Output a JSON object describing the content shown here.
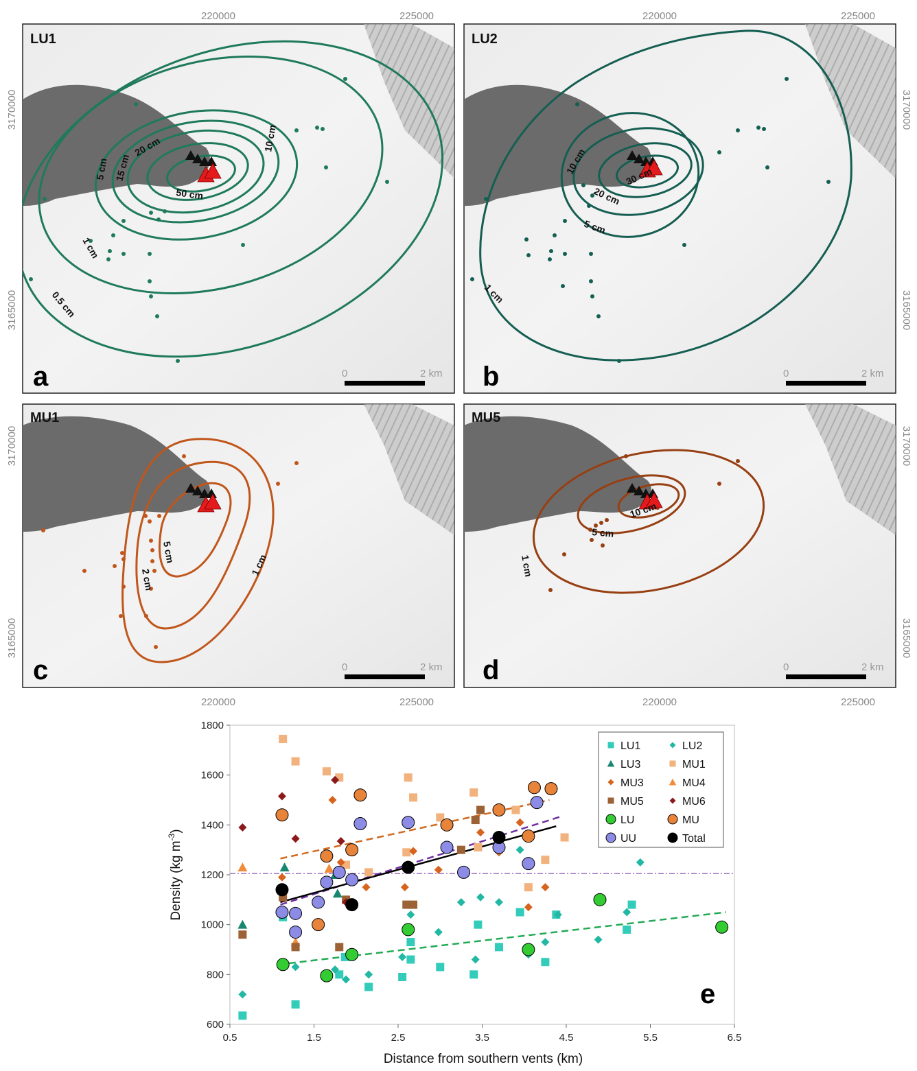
{
  "maps": {
    "x_ticks": [
      "220000",
      "225000"
    ],
    "y_ticks": [
      "3170000",
      "3165000"
    ],
    "scalebar": {
      "zero": "0",
      "end": "2 km"
    },
    "panels": [
      {
        "letter": "a",
        "unit": "LU1",
        "color": "#1f7a5c",
        "isopach_labels": [
          "50 cm",
          "20 cm",
          "15 cm",
          "10 cm",
          "5 cm",
          "1 cm",
          "0.5 cm"
        ]
      },
      {
        "letter": "b",
        "unit": "LU2",
        "color": "#155e52",
        "isopach_labels": [
          "30 cm",
          "20 cm",
          "10 cm",
          "5 cm",
          "1 cm"
        ]
      },
      {
        "letter": "c",
        "unit": "MU1",
        "color": "#c0561b",
        "isopach_labels": [
          "5 cm",
          "2 cm",
          "1 cm"
        ]
      },
      {
        "letter": "d",
        "unit": "MU5",
        "color": "#973f12",
        "isopach_labels": [
          "10 cm",
          "5 cm",
          "1 cm"
        ]
      }
    ]
  },
  "chart_data": {
    "type": "scatter",
    "panel_letter": "e",
    "xlabel": "Distance from southern vents (km)",
    "ylabel": "Density (kg m",
    "ylabel_sup": "-3",
    "ylabel_close": ")",
    "xlim": [
      0.5,
      6.5
    ],
    "ylim": [
      600,
      1800
    ],
    "x_ticks": [
      "0.5",
      "1.5",
      "2.5",
      "3.5",
      "4.5",
      "5.5",
      "6.5"
    ],
    "y_ticks": [
      "600",
      "800",
      "1000",
      "1200",
      "1400",
      "1600",
      "1800"
    ],
    "reference_line_y": 1205,
    "series": [
      {
        "name": "LU1",
        "marker": "square",
        "color": "#33ccbb",
        "points": [
          [
            0.65,
            635
          ],
          [
            1.13,
            1030
          ],
          [
            1.28,
            680
          ],
          [
            1.8,
            800
          ],
          [
            1.87,
            870
          ],
          [
            2.15,
            750
          ],
          [
            2.55,
            790
          ],
          [
            2.65,
            860
          ],
          [
            2.65,
            930
          ],
          [
            3.0,
            830
          ],
          [
            3.4,
            800
          ],
          [
            3.45,
            1000
          ],
          [
            3.7,
            910
          ],
          [
            3.95,
            1050
          ],
          [
            4.25,
            850
          ],
          [
            4.38,
            1040
          ],
          [
            5.22,
            980
          ],
          [
            5.28,
            1080
          ]
        ]
      },
      {
        "name": "LU2",
        "marker": "diamond",
        "color": "#22b8a4",
        "points": [
          [
            0.65,
            720
          ],
          [
            1.28,
            830
          ],
          [
            1.75,
            820
          ],
          [
            1.88,
            780
          ],
          [
            2.15,
            800
          ],
          [
            2.55,
            870
          ],
          [
            2.65,
            1040
          ],
          [
            2.98,
            970
          ],
          [
            3.25,
            1090
          ],
          [
            3.42,
            860
          ],
          [
            3.48,
            1110
          ],
          [
            3.7,
            1090
          ],
          [
            3.95,
            1300
          ],
          [
            4.05,
            880
          ],
          [
            4.25,
            930
          ],
          [
            4.4,
            1040
          ],
          [
            4.88,
            940
          ],
          [
            5.22,
            1050
          ],
          [
            5.38,
            1250
          ]
        ]
      },
      {
        "name": "LU3",
        "marker": "triangle",
        "color": "#198770",
        "points": [
          [
            0.65,
            1000
          ],
          [
            1.15,
            1230
          ],
          [
            1.75,
            1200
          ],
          [
            1.78,
            1125
          ]
        ]
      },
      {
        "name": "MU1",
        "marker": "square",
        "color": "#f2b27e",
        "points": [
          [
            1.13,
            1745
          ],
          [
            1.28,
            1655
          ],
          [
            1.65,
            1615
          ],
          [
            1.8,
            1590
          ],
          [
            1.88,
            1240
          ],
          [
            2.15,
            1210
          ],
          [
            2.6,
            1290
          ],
          [
            2.62,
            1590
          ],
          [
            2.68,
            1510
          ],
          [
            3.0,
            1430
          ],
          [
            3.4,
            1530
          ],
          [
            3.45,
            1310
          ],
          [
            3.9,
            1460
          ],
          [
            4.05,
            1150
          ],
          [
            4.25,
            1260
          ],
          [
            4.48,
            1350
          ]
        ]
      },
      {
        "name": "MU3",
        "marker": "diamond",
        "color": "#d7641e",
        "points": [
          [
            1.12,
            1190
          ],
          [
            1.72,
            1500
          ],
          [
            1.82,
            1250
          ],
          [
            2.12,
            1150
          ],
          [
            2.58,
            1150
          ],
          [
            2.68,
            1295
          ],
          [
            2.98,
            1220
          ],
          [
            3.25,
            1300
          ],
          [
            3.48,
            1370
          ],
          [
            3.7,
            1290
          ],
          [
            3.95,
            1410
          ],
          [
            4.05,
            1070
          ],
          [
            4.25,
            1150
          ]
        ]
      },
      {
        "name": "MU4",
        "marker": "triangle",
        "color": "#f08c3a",
        "points": [
          [
            0.65,
            1230
          ],
          [
            1.28,
            930
          ],
          [
            1.68,
            1225
          ]
        ]
      },
      {
        "name": "MU5",
        "marker": "square",
        "color": "#9c6134",
        "points": [
          [
            0.65,
            960
          ],
          [
            1.13,
            1110
          ],
          [
            1.28,
            910
          ],
          [
            1.8,
            910
          ],
          [
            1.88,
            1100
          ],
          [
            2.6,
            1080
          ],
          [
            2.68,
            1080
          ],
          [
            3.25,
            1300
          ],
          [
            3.42,
            1420
          ],
          [
            3.48,
            1460
          ]
        ]
      },
      {
        "name": "MU6",
        "marker": "diamond",
        "color": "#8c1a1a",
        "points": [
          [
            0.65,
            1390
          ],
          [
            1.12,
            1515
          ],
          [
            1.28,
            1345
          ],
          [
            1.75,
            1580
          ],
          [
            1.82,
            1335
          ],
          [
            1.88,
            1090
          ]
        ]
      },
      {
        "name": "LU",
        "marker": "circle",
        "color": "#33cc33",
        "points": [
          [
            1.13,
            840
          ],
          [
            1.65,
            795
          ],
          [
            1.95,
            880
          ],
          [
            2.62,
            980
          ],
          [
            4.05,
            900
          ],
          [
            4.9,
            1100
          ],
          [
            6.35,
            990
          ]
        ]
      },
      {
        "name": "MU",
        "marker": "circle",
        "color": "#e8833a",
        "points": [
          [
            1.12,
            1440
          ],
          [
            1.55,
            1000
          ],
          [
            1.65,
            1275
          ],
          [
            1.95,
            1300
          ],
          [
            2.05,
            1520
          ],
          [
            3.08,
            1400
          ],
          [
            3.7,
            1460
          ],
          [
            4.05,
            1355
          ],
          [
            4.12,
            1550
          ],
          [
            4.32,
            1545
          ]
        ]
      },
      {
        "name": "UU",
        "marker": "circle",
        "color": "#8c8ce6",
        "points": [
          [
            1.12,
            1050
          ],
          [
            1.28,
            1045
          ],
          [
            1.28,
            970
          ],
          [
            1.55,
            1090
          ],
          [
            1.65,
            1170
          ],
          [
            1.8,
            1210
          ],
          [
            1.95,
            1180
          ],
          [
            2.05,
            1405
          ],
          [
            2.62,
            1410
          ],
          [
            3.08,
            1310
          ],
          [
            3.28,
            1210
          ],
          [
            3.7,
            1310
          ],
          [
            4.05,
            1245
          ],
          [
            4.15,
            1490
          ]
        ]
      },
      {
        "name": "Total",
        "marker": "circle",
        "color": "#000000",
        "points": [
          [
            1.12,
            1140
          ],
          [
            1.95,
            1080
          ],
          [
            2.62,
            1230
          ],
          [
            3.7,
            1350
          ]
        ]
      }
    ],
    "trend_lines": [
      {
        "series": "MU",
        "style": "dashed",
        "color": "#d2691e",
        "from": [
          1.1,
          1265
        ],
        "to": [
          4.3,
          1500
        ]
      },
      {
        "series": "UU",
        "style": "dashed",
        "color": "#7030a0",
        "from": [
          1.1,
          1080
        ],
        "to": [
          4.45,
          1435
        ]
      },
      {
        "series": "Total",
        "style": "solid",
        "color": "#000000",
        "from": [
          1.1,
          1090
        ],
        "to": [
          4.38,
          1395
        ]
      },
      {
        "series": "LU",
        "style": "dashed",
        "color": "#22aa55",
        "from": [
          1.2,
          845
        ],
        "to": [
          6.4,
          1050
        ]
      }
    ],
    "legend_position": "top-right"
  }
}
